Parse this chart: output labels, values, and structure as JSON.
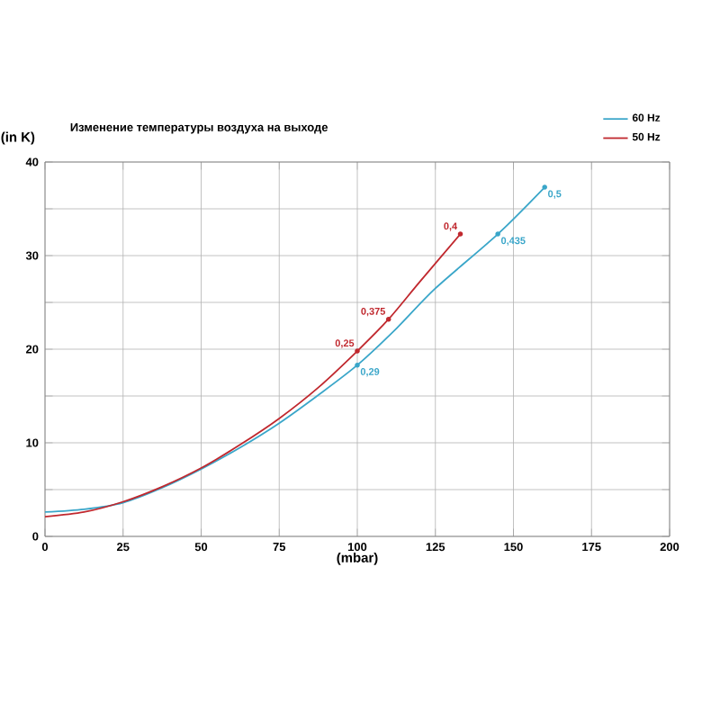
{
  "chart_data": {
    "type": "line",
    "title": "Изменение температуры воздуха на выходе",
    "xlabel": "(mbar)",
    "ylabel": "(in K)",
    "xlim": [
      0,
      200
    ],
    "xticks": [
      0,
      25,
      50,
      75,
      100,
      125,
      150,
      175,
      200
    ],
    "ylim": [
      0,
      40
    ],
    "yticks": [
      0,
      {
        "value": 5,
        "label": null
      },
      10,
      {
        "value": 15,
        "label": null
      },
      20,
      {
        "value": 25,
        "label": null
      },
      30,
      {
        "value": 35,
        "label": null
      },
      40
    ],
    "grid": true,
    "legend": "top right",
    "series": [
      {
        "name": "60 Hz",
        "color": "#3aa6c9",
        "x": [
          0,
          12.5,
          25,
          37.5,
          50,
          62.5,
          75,
          87.5,
          100,
          112.5,
          125,
          145,
          160
        ],
        "values": [
          2.6,
          2.9,
          3.6,
          5.2,
          7.2,
          9.5,
          12.1,
          15.1,
          18.3,
          22.2,
          26.5,
          32.3,
          37.3
        ]
      },
      {
        "name": "50 Hz",
        "color": "#c0282e",
        "x": [
          0,
          12.5,
          25,
          37.5,
          50,
          62.5,
          75,
          87.5,
          100,
          110,
          120,
          133
        ],
        "values": [
          2.1,
          2.6,
          3.7,
          5.3,
          7.3,
          9.8,
          12.6,
          15.9,
          19.8,
          23.2,
          27.2,
          32.3
        ]
      }
    ],
    "annotations": [
      {
        "text": "0,29",
        "x": 100,
        "y": 18.3
      },
      {
        "text": "0,435",
        "x": 145,
        "y": 32.3
      },
      {
        "text": "0,5",
        "x": 160,
        "y": 37.3
      },
      {
        "text": "0,25",
        "x": 100,
        "y": 19.8
      },
      {
        "text": "0,375",
        "x": 110,
        "y": 23.2
      },
      {
        "text": "0,4",
        "x": 133,
        "y": 32.3
      }
    ]
  }
}
